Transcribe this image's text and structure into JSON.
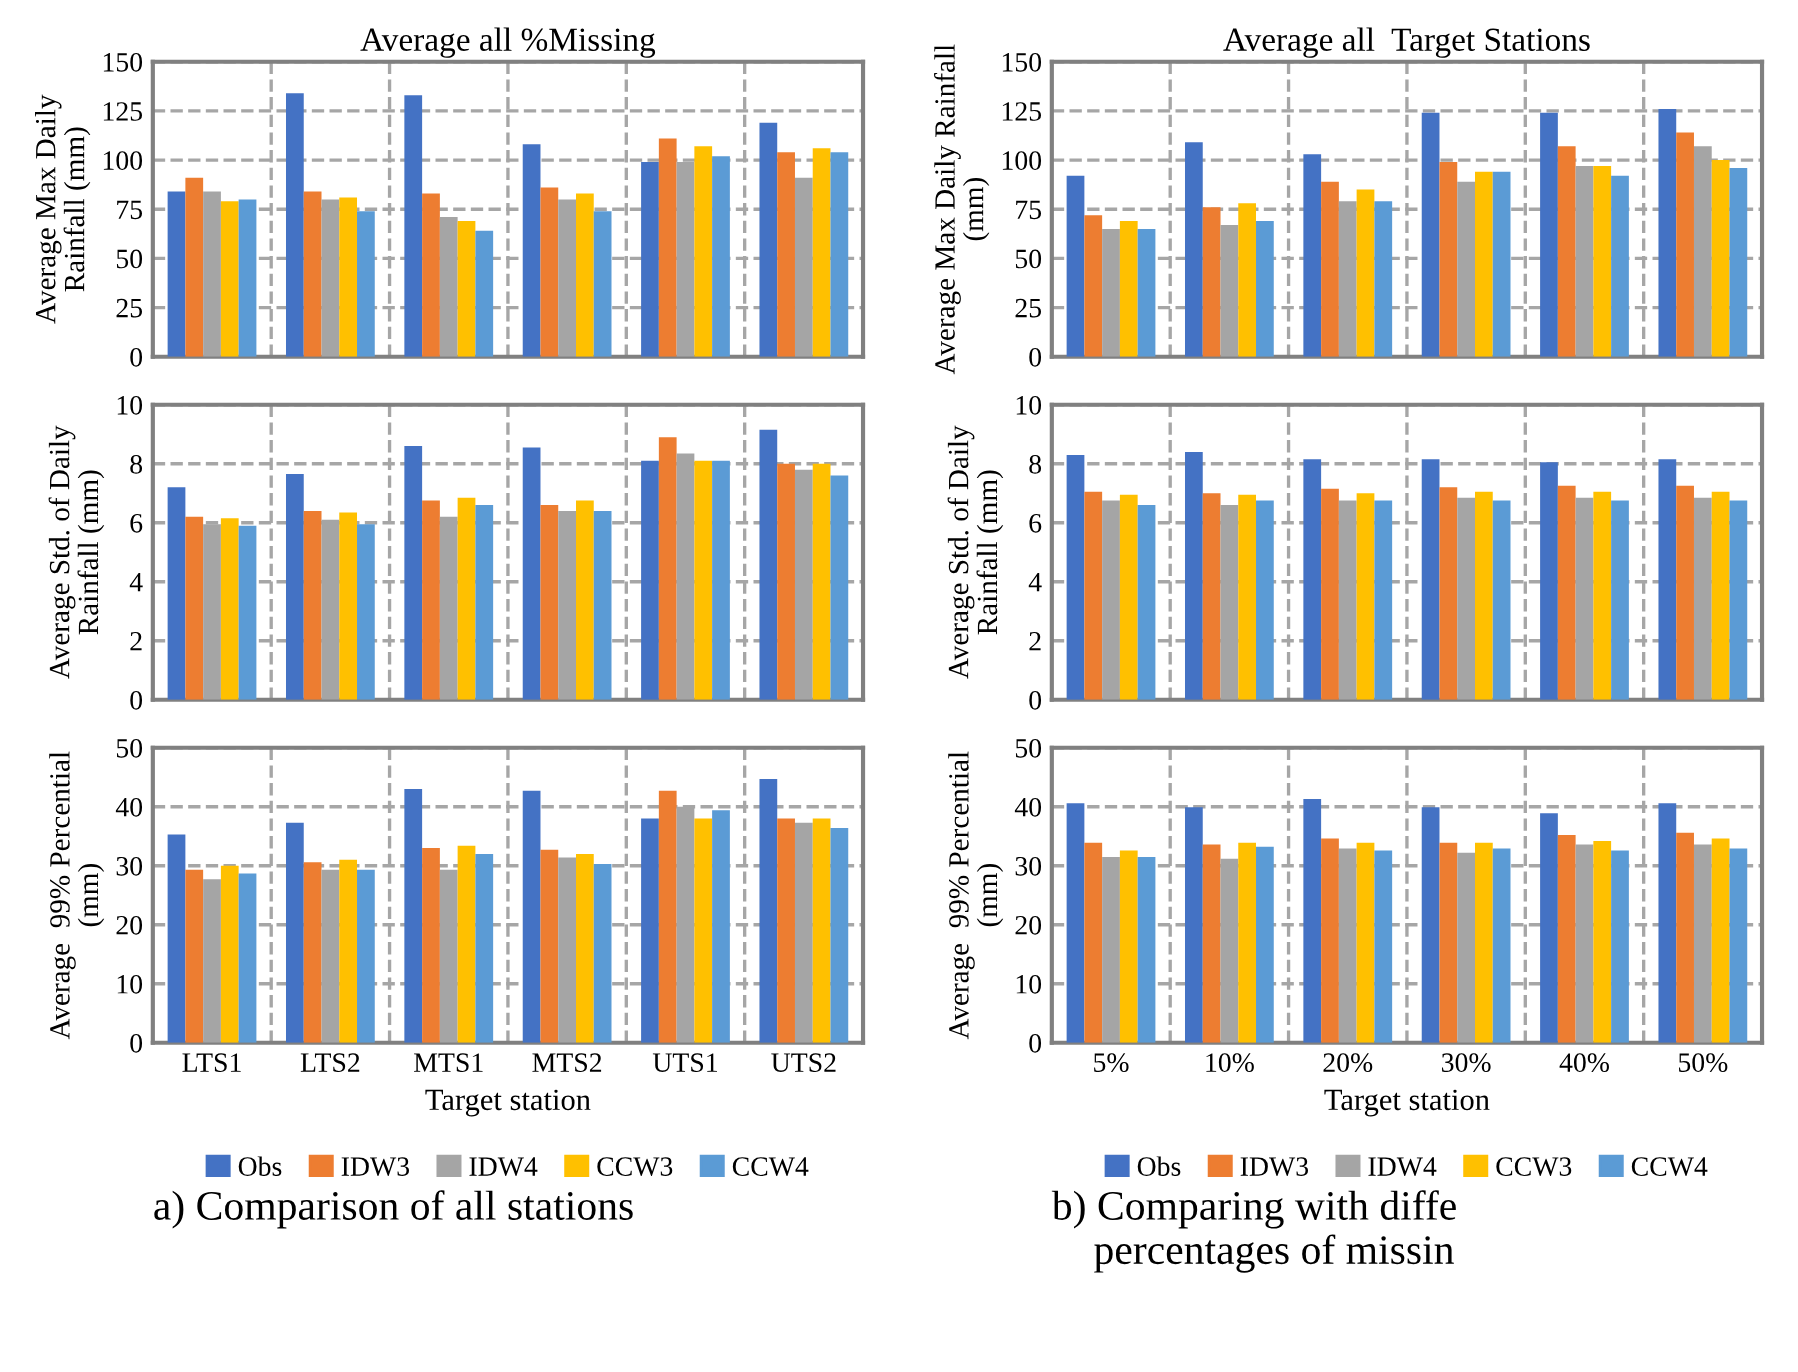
{
  "chart_data": [
    {
      "type": "bar",
      "title": "Average all %Missing",
      "ylabel": "Average Max Daily\nRainfall (mm)",
      "categories": [
        null,
        null,
        null,
        null,
        null,
        null
      ],
      "ylim": [
        0,
        150
      ],
      "yticks": [
        0,
        25,
        50,
        75,
        100,
        125,
        150
      ],
      "grid": true,
      "tick_labels": "y",
      "series": [
        {
          "color": "#4472c4",
          "values": [
            84,
            134,
            133,
            108,
            99,
            119
          ]
        },
        {
          "color": "#ed7d31",
          "values": [
            91,
            84,
            83,
            86,
            111,
            104
          ]
        },
        {
          "color": "#a5a5a5",
          "values": [
            84,
            80,
            71,
            80,
            99,
            91
          ]
        },
        {
          "color": "#ffc000",
          "values": [
            79,
            81,
            69,
            83,
            107,
            106
          ]
        },
        {
          "color": "#5b9bd5",
          "values": [
            80,
            74,
            64,
            74,
            102,
            104
          ]
        }
      ]
    },
    {
      "type": "bar",
      "ylabel": "Average Std. of Daily\nRainfall (mm)",
      "categories": [
        null,
        null,
        null,
        null,
        null,
        null
      ],
      "ylim": [
        0,
        10
      ],
      "yticks": [
        0,
        2,
        4,
        6,
        8,
        10
      ],
      "grid": true,
      "tick_labels": "y",
      "series": [
        {
          "color": "#4472c4",
          "values": [
            7.2,
            7.65,
            8.6,
            8.55,
            8.1,
            9.15
          ]
        },
        {
          "color": "#ed7d31",
          "values": [
            6.2,
            6.4,
            6.75,
            6.6,
            8.9,
            8.0
          ]
        },
        {
          "color": "#a5a5a5",
          "values": [
            5.95,
            6.1,
            6.2,
            6.4,
            8.35,
            7.8
          ]
        },
        {
          "color": "#ffc000",
          "values": [
            6.15,
            6.35,
            6.85,
            6.75,
            8.1,
            8.0
          ]
        },
        {
          "color": "#5b9bd5",
          "values": [
            5.9,
            5.95,
            6.6,
            6.4,
            8.1,
            7.6
          ]
        }
      ]
    },
    {
      "type": "bar",
      "ylabel": "Average  99% Percential\n(mm)",
      "xlabel": "Target station",
      "categories": [
        "LTS1",
        "LTS2",
        "MTS1",
        "MTS2",
        "UTS1",
        "UTS2"
      ],
      "ylim": [
        0,
        50
      ],
      "yticks": [
        0,
        10,
        20,
        30,
        40,
        50
      ],
      "grid": true,
      "legend": "bottom",
      "annotations": [
        "a) Comparison of all stations"
      ],
      "series": [
        {
          "name": "Obs",
          "color": "#4472c4",
          "values": [
            35.3,
            37.3,
            43,
            42.7,
            38,
            44.7
          ]
        },
        {
          "name": "IDW3",
          "color": "#ed7d31",
          "values": [
            29.3,
            30.6,
            33,
            32.7,
            42.7,
            38
          ]
        },
        {
          "name": "IDW4",
          "color": "#a5a5a5",
          "values": [
            27.7,
            29.3,
            29.3,
            31.4,
            40,
            37.3
          ]
        },
        {
          "name": "CCW3",
          "color": "#ffc000",
          "values": [
            30,
            31,
            33.4,
            32,
            38,
            38
          ]
        },
        {
          "name": "CCW4",
          "color": "#5b9bd5",
          "values": [
            28.7,
            29.3,
            32,
            30.3,
            39.4,
            36.4
          ]
        }
      ]
    },
    {
      "type": "bar",
      "title": "Average all  Target Stations",
      "ylabel": "Average Max Daily Rainfall\n(mm)",
      "categories": [
        null,
        null,
        null,
        null,
        null,
        null
      ],
      "ylim": [
        0,
        150
      ],
      "yticks": [
        0,
        25,
        50,
        75,
        100,
        125,
        150
      ],
      "grid": true,
      "tick_labels": "y",
      "series": [
        {
          "color": "#4472c4",
          "values": [
            92,
            109,
            103,
            124,
            124,
            126
          ]
        },
        {
          "color": "#ed7d31",
          "values": [
            72,
            76,
            89,
            99,
            107,
            114
          ]
        },
        {
          "color": "#a5a5a5",
          "values": [
            65,
            67,
            79,
            89,
            97,
            107
          ]
        },
        {
          "color": "#ffc000",
          "values": [
            69,
            78,
            85,
            94,
            97,
            100
          ]
        },
        {
          "color": "#5b9bd5",
          "values": [
            65,
            69,
            79,
            94,
            92,
            96
          ]
        }
      ]
    },
    {
      "type": "bar",
      "ylabel": "Average Std. of Daily\nRainfall (mm)",
      "categories": [
        null,
        null,
        null,
        null,
        null,
        null
      ],
      "ylim": [
        0,
        10
      ],
      "yticks": [
        0,
        2,
        4,
        6,
        8,
        10
      ],
      "grid": true,
      "tick_labels": "y",
      "series": [
        {
          "color": "#4472c4",
          "values": [
            8.3,
            8.4,
            8.15,
            8.15,
            8.05,
            8.15
          ]
        },
        {
          "color": "#ed7d31",
          "values": [
            7.05,
            7.0,
            7.15,
            7.2,
            7.25,
            7.25
          ]
        },
        {
          "color": "#a5a5a5",
          "values": [
            6.75,
            6.6,
            6.75,
            6.85,
            6.85,
            6.85
          ]
        },
        {
          "color": "#ffc000",
          "values": [
            6.95,
            6.95,
            7.0,
            7.05,
            7.05,
            7.05
          ]
        },
        {
          "color": "#5b9bd5",
          "values": [
            6.6,
            6.75,
            6.75,
            6.75,
            6.75,
            6.75
          ]
        }
      ]
    },
    {
      "type": "bar",
      "ylabel": "Average  99% Percential\n(mm)",
      "xlabel": "Target station",
      "categories": [
        "5%",
        "10%",
        "20%",
        "30%",
        "40%",
        "50%"
      ],
      "ylim": [
        0,
        50
      ],
      "yticks": [
        0,
        10,
        20,
        30,
        40,
        50
      ],
      "grid": true,
      "legend": "bottom",
      "annotations": [
        "b) Comparing with diffe\n    percentages of missin"
      ],
      "series": [
        {
          "name": "Obs",
          "color": "#4472c4",
          "values": [
            40.6,
            39.9,
            41.3,
            39.9,
            38.9,
            40.6
          ]
        },
        {
          "name": "IDW3",
          "color": "#ed7d31",
          "values": [
            33.9,
            33.6,
            34.6,
            33.9,
            35.2,
            35.6
          ]
        },
        {
          "name": "IDW4",
          "color": "#a5a5a5",
          "values": [
            31.5,
            31.2,
            32.9,
            32.2,
            33.6,
            33.6
          ]
        },
        {
          "name": "CCW3",
          "color": "#ffc000",
          "values": [
            32.6,
            33.9,
            33.9,
            33.9,
            34.2,
            34.6
          ]
        },
        {
          "name": "CCW4",
          "color": "#5b9bd5",
          "values": [
            31.5,
            33.2,
            32.6,
            32.9,
            32.6,
            32.9
          ]
        }
      ]
    }
  ]
}
